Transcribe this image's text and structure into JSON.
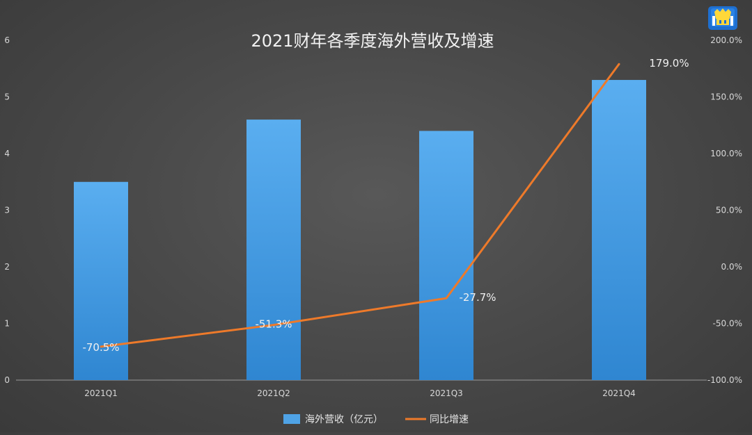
{
  "chart_data": {
    "type": "bar",
    "title": "2021财年各季度海外营收及增速",
    "categories": [
      "2021Q1",
      "2021Q2",
      "2021Q3",
      "2021Q4"
    ],
    "series": [
      {
        "name": "海外营收（亿元）",
        "type": "bar",
        "axis": "left",
        "values": [
          3.5,
          4.6,
          4.4,
          5.3
        ],
        "color": "#4fa3e6"
      },
      {
        "name": "同比增速",
        "type": "line",
        "axis": "right",
        "values": [
          -70.5,
          -51.3,
          -27.7,
          179.0
        ],
        "labels": [
          "-70.5%",
          "-51.3%",
          "-27.7%",
          "179.0%"
        ],
        "color": "#ee7a2a"
      }
    ],
    "y_left": {
      "ylim": [
        0,
        6
      ],
      "ticks": [
        "0",
        "1",
        "2",
        "3",
        "4",
        "5",
        "6"
      ]
    },
    "y_right": {
      "ylim": [
        -100,
        200
      ],
      "ticks": [
        "-100.0%",
        "-50.0%",
        "0.0%",
        "50.0%",
        "100.0%",
        "150.0%",
        "200.0%"
      ]
    },
    "grid": false,
    "legend_position": "bottom"
  },
  "logo": {
    "icon": "mascot-logo-icon"
  }
}
